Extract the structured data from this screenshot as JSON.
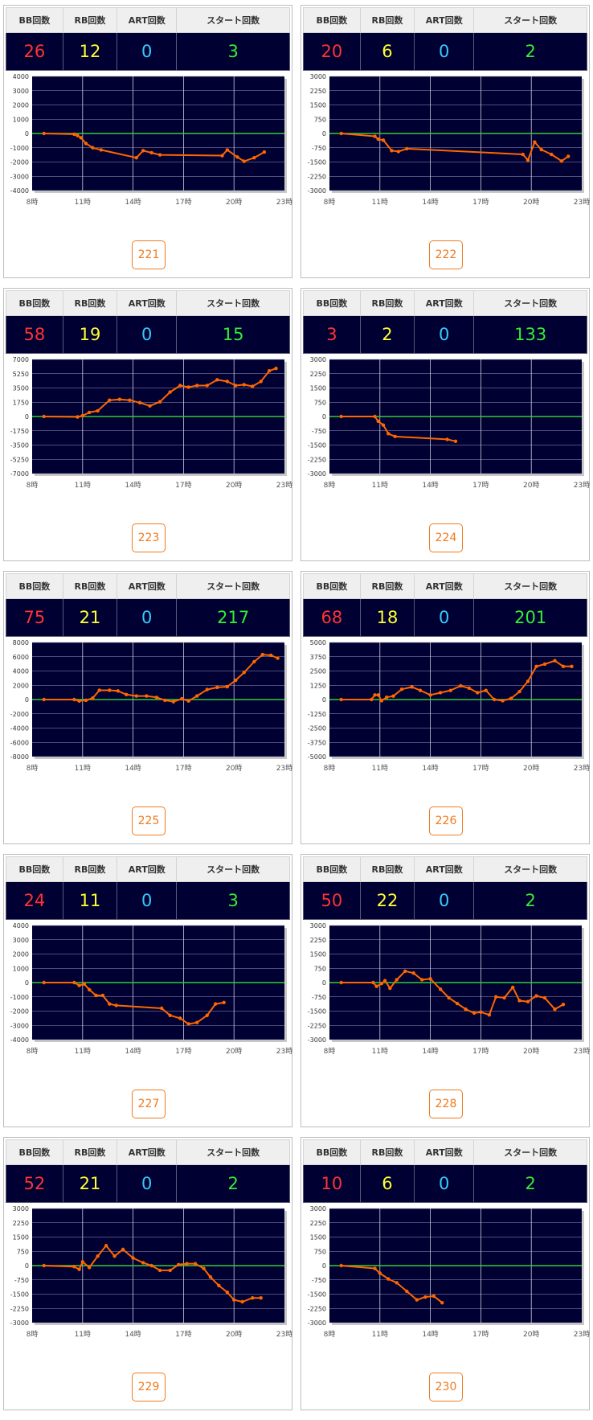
{
  "headers": {
    "bb": "BB回数",
    "rb": "RB回数",
    "art": "ART回数",
    "start": "スタート回数"
  },
  "colors": {
    "bb": "#ff3333",
    "rb": "#ffff33",
    "art": "#33ccff",
    "start": "#33ee33",
    "plot_bg": "#000033",
    "line": "#ff6600",
    "zero_line": "#33cc33",
    "button": "#f07a1e"
  },
  "x_ticks": [
    "8時",
    "11時",
    "14時",
    "17時",
    "20時",
    "23時"
  ],
  "machines": [
    {
      "id": "221",
      "bb": "26",
      "rb": "12",
      "art": "0",
      "start": "3"
    },
    {
      "id": "222",
      "bb": "20",
      "rb": "6",
      "art": "0",
      "start": "2"
    },
    {
      "id": "223",
      "bb": "58",
      "rb": "19",
      "art": "0",
      "start": "15"
    },
    {
      "id": "224",
      "bb": "3",
      "rb": "2",
      "art": "0",
      "start": "133"
    },
    {
      "id": "225",
      "bb": "75",
      "rb": "21",
      "art": "0",
      "start": "217"
    },
    {
      "id": "226",
      "bb": "68",
      "rb": "18",
      "art": "0",
      "start": "201"
    },
    {
      "id": "227",
      "bb": "24",
      "rb": "11",
      "art": "0",
      "start": "3"
    },
    {
      "id": "228",
      "bb": "50",
      "rb": "22",
      "art": "0",
      "start": "2"
    },
    {
      "id": "229",
      "bb": "52",
      "rb": "21",
      "art": "0",
      "start": "2"
    },
    {
      "id": "230",
      "bb": "10",
      "rb": "6",
      "art": "0",
      "start": "2"
    }
  ],
  "chart_data": [
    {
      "type": "line",
      "title": "221",
      "x_unit": "hour",
      "xlim": [
        8,
        23
      ],
      "y_ticks": [
        "4000",
        "3000",
        "2000",
        "1000",
        "0",
        "-1000",
        "-2000",
        "-3000",
        "-4000"
      ],
      "ylim": [
        -4000,
        4000
      ],
      "points": [
        [
          8.7,
          0
        ],
        [
          10.5,
          -50
        ],
        [
          10.7,
          -150
        ],
        [
          10.9,
          -300
        ],
        [
          11.2,
          -700
        ],
        [
          11.6,
          -1000
        ],
        [
          12.1,
          -1150
        ],
        [
          14.2,
          -1700
        ],
        [
          14.6,
          -1200
        ],
        [
          15.1,
          -1350
        ],
        [
          15.6,
          -1500
        ],
        [
          19.3,
          -1550
        ],
        [
          19.6,
          -1150
        ],
        [
          20.2,
          -1650
        ],
        [
          20.6,
          -1950
        ],
        [
          21.2,
          -1700
        ],
        [
          21.8,
          -1300
        ]
      ]
    },
    {
      "type": "line",
      "title": "222",
      "x_unit": "hour",
      "xlim": [
        8,
        23
      ],
      "y_ticks": [
        "3000",
        "2250",
        "1500",
        "750",
        "0",
        "-750",
        "-1500",
        "-2250",
        "-3000"
      ],
      "ylim": [
        -3000,
        3000
      ],
      "points": [
        [
          8.7,
          0
        ],
        [
          10.7,
          -150
        ],
        [
          10.9,
          -300
        ],
        [
          11.2,
          -350
        ],
        [
          11.7,
          -900
        ],
        [
          12.1,
          -950
        ],
        [
          12.6,
          -800
        ],
        [
          19.5,
          -1100
        ],
        [
          19.8,
          -1400
        ],
        [
          20.2,
          -450
        ],
        [
          20.6,
          -850
        ],
        [
          21.2,
          -1100
        ],
        [
          21.8,
          -1450
        ],
        [
          22.2,
          -1200
        ]
      ]
    },
    {
      "type": "line",
      "title": "223",
      "x_unit": "hour",
      "xlim": [
        8,
        23
      ],
      "y_ticks": [
        "7000",
        "5250",
        "3500",
        "1750",
        "0",
        "-1750",
        "-3500",
        "-5250",
        "-7000"
      ],
      "ylim": [
        -7000,
        7000
      ],
      "points": [
        [
          8.7,
          0
        ],
        [
          10.7,
          -50
        ],
        [
          11.0,
          100
        ],
        [
          11.4,
          500
        ],
        [
          11.9,
          700
        ],
        [
          12.6,
          2000
        ],
        [
          13.2,
          2100
        ],
        [
          13.8,
          2000
        ],
        [
          14.4,
          1700
        ],
        [
          15.0,
          1300
        ],
        [
          15.6,
          1800
        ],
        [
          16.2,
          3000
        ],
        [
          16.8,
          3800
        ],
        [
          17.3,
          3600
        ],
        [
          17.8,
          3800
        ],
        [
          18.4,
          3800
        ],
        [
          19.0,
          4500
        ],
        [
          19.6,
          4300
        ],
        [
          20.1,
          3800
        ],
        [
          20.6,
          3900
        ],
        [
          21.1,
          3700
        ],
        [
          21.6,
          4300
        ],
        [
          22.1,
          5600
        ],
        [
          22.5,
          5900
        ]
      ]
    },
    {
      "type": "line",
      "title": "224",
      "x_unit": "hour",
      "xlim": [
        8,
        23
      ],
      "y_ticks": [
        "3000",
        "2250",
        "1500",
        "750",
        "0",
        "-750",
        "-1500",
        "-2250",
        "-3000"
      ],
      "ylim": [
        -3000,
        3000
      ],
      "points": [
        [
          8.7,
          0
        ],
        [
          10.7,
          0
        ],
        [
          10.9,
          -250
        ],
        [
          11.2,
          -450
        ],
        [
          11.5,
          -900
        ],
        [
          11.9,
          -1050
        ],
        [
          15.0,
          -1200
        ],
        [
          15.5,
          -1300
        ]
      ]
    },
    {
      "type": "line",
      "title": "225",
      "x_unit": "hour",
      "xlim": [
        8,
        23
      ],
      "y_ticks": [
        "8000",
        "6000",
        "4000",
        "2000",
        "0",
        "-2000",
        "-4000",
        "-6000",
        "-8000"
      ],
      "ylim": [
        -8000,
        8000
      ],
      "points": [
        [
          8.7,
          0
        ],
        [
          10.5,
          0
        ],
        [
          10.8,
          -200
        ],
        [
          11.2,
          -100
        ],
        [
          11.6,
          200
        ],
        [
          12.0,
          1300
        ],
        [
          12.6,
          1300
        ],
        [
          13.1,
          1200
        ],
        [
          13.6,
          700
        ],
        [
          14.2,
          500
        ],
        [
          14.8,
          500
        ],
        [
          15.4,
          300
        ],
        [
          15.9,
          -100
        ],
        [
          16.4,
          -300
        ],
        [
          16.9,
          100
        ],
        [
          17.3,
          -200
        ],
        [
          17.8,
          500
        ],
        [
          18.4,
          1400
        ],
        [
          19.0,
          1700
        ],
        [
          19.6,
          1800
        ],
        [
          20.1,
          2700
        ],
        [
          20.6,
          3800
        ],
        [
          21.2,
          5300
        ],
        [
          21.7,
          6300
        ],
        [
          22.2,
          6200
        ],
        [
          22.6,
          5800
        ]
      ]
    },
    {
      "type": "line",
      "title": "226",
      "x_unit": "hour",
      "xlim": [
        8,
        23
      ],
      "y_ticks": [
        "5000",
        "3750",
        "2500",
        "1250",
        "0",
        "-1250",
        "-2500",
        "-3750",
        "-5000"
      ],
      "ylim": [
        -5000,
        5000
      ],
      "points": [
        [
          8.7,
          0
        ],
        [
          10.5,
          0
        ],
        [
          10.7,
          400
        ],
        [
          10.9,
          400
        ],
        [
          11.1,
          -100
        ],
        [
          11.4,
          200
        ],
        [
          11.8,
          300
        ],
        [
          12.3,
          900
        ],
        [
          12.9,
          1100
        ],
        [
          13.4,
          800
        ],
        [
          14.0,
          400
        ],
        [
          14.6,
          600
        ],
        [
          15.2,
          800
        ],
        [
          15.8,
          1200
        ],
        [
          16.3,
          1000
        ],
        [
          16.8,
          600
        ],
        [
          17.3,
          800
        ],
        [
          17.8,
          0
        ],
        [
          18.3,
          -100
        ],
        [
          18.8,
          100
        ],
        [
          19.3,
          700
        ],
        [
          19.8,
          1600
        ],
        [
          20.3,
          2900
        ],
        [
          20.8,
          3100
        ],
        [
          21.4,
          3400
        ],
        [
          21.9,
          2900
        ],
        [
          22.4,
          2900
        ]
      ]
    },
    {
      "type": "line",
      "title": "227",
      "x_unit": "hour",
      "xlim": [
        8,
        23
      ],
      "y_ticks": [
        "4000",
        "3000",
        "2000",
        "1000",
        "0",
        "-1000",
        "-2000",
        "-3000",
        "-4000"
      ],
      "ylim": [
        -4000,
        4000
      ],
      "points": [
        [
          8.7,
          0
        ],
        [
          10.5,
          0
        ],
        [
          10.8,
          -200
        ],
        [
          11.1,
          -100
        ],
        [
          11.4,
          -500
        ],
        [
          11.8,
          -900
        ],
        [
          12.2,
          -900
        ],
        [
          12.6,
          -1500
        ],
        [
          13.0,
          -1600
        ],
        [
          15.7,
          -1800
        ],
        [
          16.2,
          -2300
        ],
        [
          16.8,
          -2500
        ],
        [
          17.3,
          -2900
        ],
        [
          17.8,
          -2800
        ],
        [
          18.4,
          -2300
        ],
        [
          18.9,
          -1500
        ],
        [
          19.4,
          -1400
        ]
      ]
    },
    {
      "type": "line",
      "title": "228",
      "x_unit": "hour",
      "xlim": [
        8,
        23
      ],
      "y_ticks": [
        "3000",
        "2250",
        "1500",
        "750",
        "0",
        "-750",
        "-1500",
        "-2250",
        "-3000"
      ],
      "ylim": [
        -3000,
        3000
      ],
      "points": [
        [
          8.7,
          0
        ],
        [
          10.6,
          0
        ],
        [
          10.8,
          -200
        ],
        [
          11.1,
          -50
        ],
        [
          11.3,
          100
        ],
        [
          11.6,
          -300
        ],
        [
          12.0,
          150
        ],
        [
          12.5,
          600
        ],
        [
          13.0,
          500
        ],
        [
          13.5,
          150
        ],
        [
          14.0,
          200
        ],
        [
          14.6,
          -350
        ],
        [
          15.1,
          -800
        ],
        [
          15.6,
          -1100
        ],
        [
          16.1,
          -1400
        ],
        [
          16.6,
          -1600
        ],
        [
          17.0,
          -1550
        ],
        [
          17.5,
          -1700
        ],
        [
          17.9,
          -750
        ],
        [
          18.4,
          -800
        ],
        [
          18.9,
          -250
        ],
        [
          19.3,
          -950
        ],
        [
          19.8,
          -1000
        ],
        [
          20.3,
          -700
        ],
        [
          20.8,
          -800
        ],
        [
          21.4,
          -1400
        ],
        [
          21.9,
          -1150
        ]
      ]
    },
    {
      "type": "line",
      "title": "229",
      "x_unit": "hour",
      "xlim": [
        8,
        23
      ],
      "y_ticks": [
        "3000",
        "2250",
        "1500",
        "750",
        "0",
        "-750",
        "-1500",
        "-2250",
        "-3000"
      ],
      "ylim": [
        -3000,
        3000
      ],
      "points": [
        [
          8.7,
          0
        ],
        [
          10.5,
          -50
        ],
        [
          10.8,
          -200
        ],
        [
          11.0,
          200
        ],
        [
          11.4,
          -100
        ],
        [
          11.9,
          500
        ],
        [
          12.4,
          1050
        ],
        [
          12.9,
          500
        ],
        [
          13.4,
          850
        ],
        [
          14.0,
          400
        ],
        [
          14.6,
          150
        ],
        [
          15.1,
          0
        ],
        [
          15.6,
          -250
        ],
        [
          16.2,
          -250
        ],
        [
          16.7,
          50
        ],
        [
          17.2,
          100
        ],
        [
          17.7,
          100
        ],
        [
          18.2,
          -150
        ],
        [
          18.6,
          -600
        ],
        [
          19.1,
          -1050
        ],
        [
          19.6,
          -1400
        ],
        [
          20.0,
          -1800
        ],
        [
          20.5,
          -1900
        ],
        [
          21.1,
          -1700
        ],
        [
          21.6,
          -1700
        ]
      ]
    },
    {
      "type": "line",
      "title": "230",
      "x_unit": "hour",
      "xlim": [
        8,
        23
      ],
      "y_ticks": [
        "3000",
        "2250",
        "1500",
        "750",
        "0",
        "-750",
        "-1500",
        "-2250",
        "-3000"
      ],
      "ylim": [
        -3000,
        3000
      ],
      "points": [
        [
          8.7,
          0
        ],
        [
          10.7,
          -150
        ],
        [
          11.0,
          -400
        ],
        [
          11.5,
          -700
        ],
        [
          12.0,
          -900
        ],
        [
          12.6,
          -1350
        ],
        [
          13.2,
          -1800
        ],
        [
          13.7,
          -1650
        ],
        [
          14.2,
          -1600
        ],
        [
          14.7,
          -1950
        ]
      ]
    }
  ]
}
